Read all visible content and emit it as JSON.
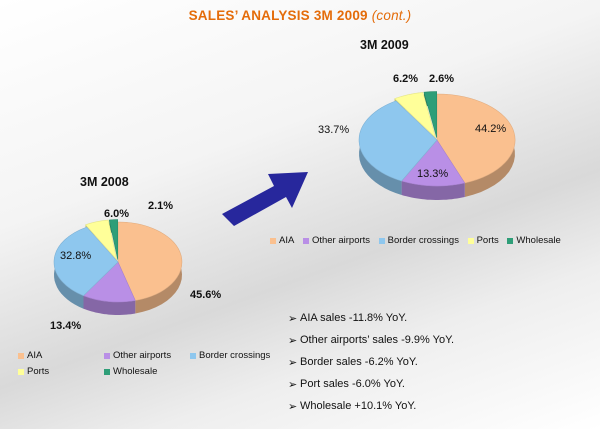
{
  "page": {
    "title_main": "SALES’ ANALYSIS 3M 2009",
    "title_cont": "(cont.)"
  },
  "colors": {
    "AIA": "#fac08f",
    "Other airports": "#b98fe6",
    "Border crossings": "#8ec7ee",
    "Ports": "#ffff99",
    "Wholesale": "#2e9e78",
    "arrow": "#27279c"
  },
  "chart_data": [
    {
      "type": "pie",
      "title": "3M 2009",
      "labels": [
        "AIA",
        "Other airports",
        "Border crossings",
        "Ports",
        "Wholesale"
      ],
      "values": [
        44.2,
        13.3,
        33.7,
        6.2,
        2.6
      ],
      "value_labels": [
        "44.2%",
        "13.3%",
        "33.7%",
        "6.2%",
        "2.6%"
      ],
      "legend_position": "bottom"
    },
    {
      "type": "pie",
      "title": "3M 2008",
      "labels": [
        "AIA",
        "Other airports",
        "Border crossings",
        "Ports",
        "Wholesale"
      ],
      "values": [
        45.6,
        13.4,
        32.8,
        6.0,
        2.1
      ],
      "value_labels": [
        "45.6%",
        "13.4%",
        "32.8%",
        "6.0%",
        "2.1%"
      ],
      "legend_position": "bottom"
    }
  ],
  "bullets": [
    "AIA sales -11.8% YoY.",
    "Other airports’ sales -9.9% YoY.",
    "Border sales -6.2% YoY.",
    "Port sales -6.0% YoY.",
    "Wholesale +10.1% YoY."
  ],
  "bullet_symbol": "➢"
}
